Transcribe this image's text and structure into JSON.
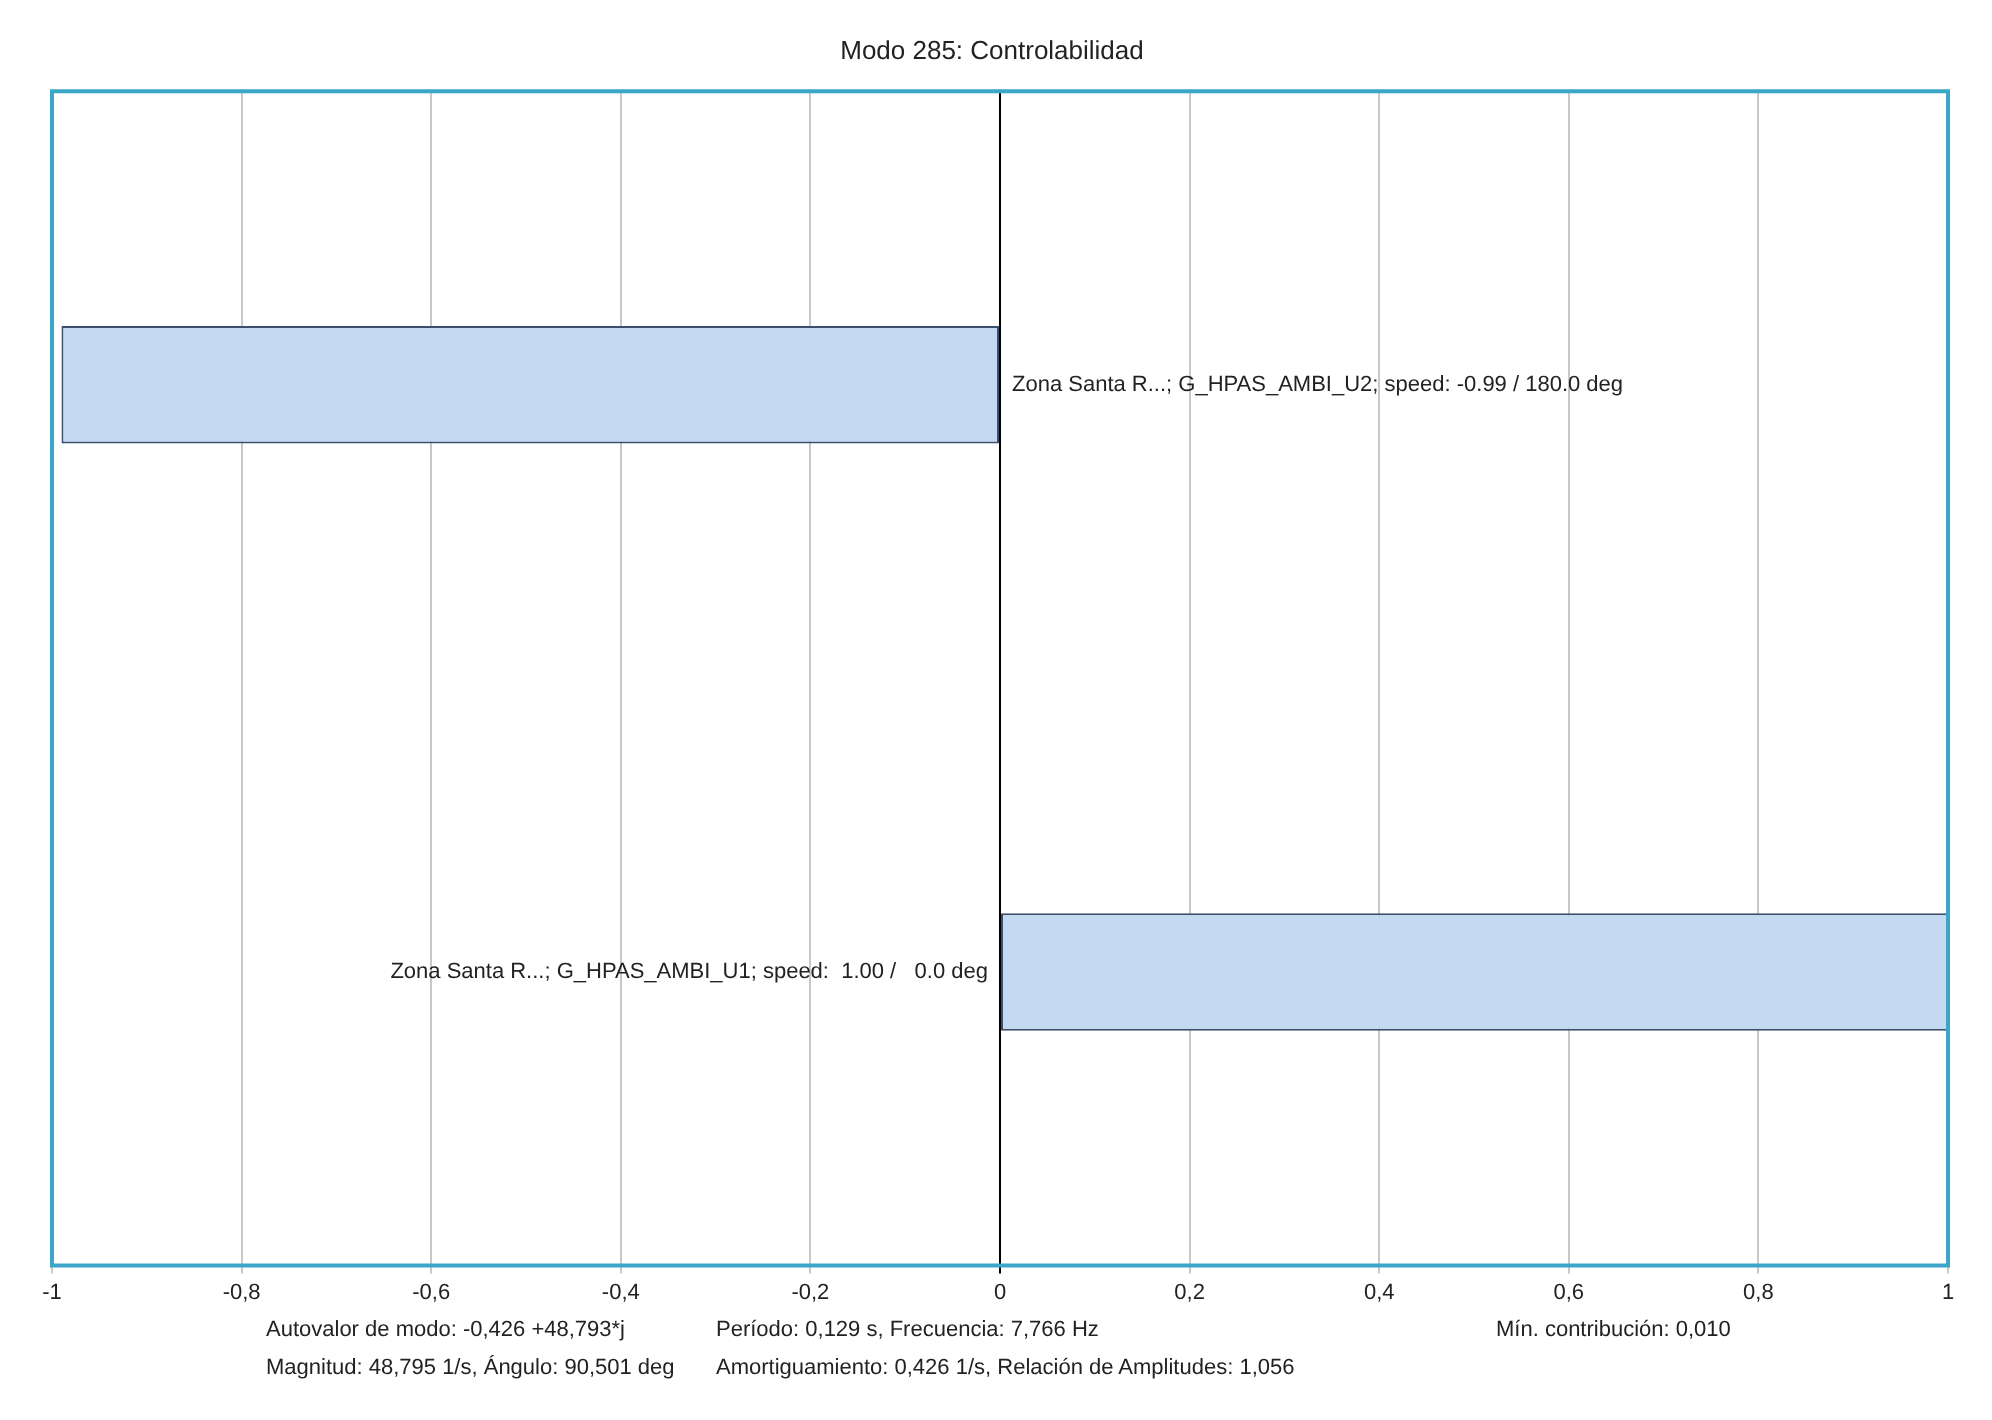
{
  "chart_data": {
    "type": "bar",
    "orientation": "horizontal",
    "title": "Modo 285: Controlabilidad",
    "categories": [
      null,
      null
    ],
    "values": [
      -0.99,
      1.0
    ],
    "value_labels": [
      "Zona Santa R...; G_HPAS_AMBI_U2; speed: -0.99 / 180.0 deg",
      "Zona Santa R...; G_HPAS_AMBI_U1; speed:  1.00 /   0.0 deg"
    ],
    "color": "#c5d9f1",
    "xlim": [
      -1,
      1
    ],
    "xticks": [
      -1,
      {
        "value": -0.8,
        "label": "-0,8"
      },
      {
        "value": -0.6,
        "label": "-0,6"
      },
      {
        "value": -0.4,
        "label": "-0,4"
      },
      {
        "value": -0.2,
        "label": "-0,2"
      },
      0,
      {
        "value": 0.2,
        "label": "0,2"
      },
      {
        "value": 0.4,
        "label": "0,4"
      },
      {
        "value": 0.6,
        "label": "0,6"
      },
      {
        "value": 0.8,
        "label": "0,8"
      },
      1
    ],
    "grid": "x",
    "legend": false,
    "tick_labels": "x",
    "annotations": [
      "Autovalor de modo: -0,426 +48,793*j",
      "Magnitud: 48,795 1/s,  Ángulo: 90,501 deg",
      "Período: 0,129 s,  Frecuencia: 7,766 Hz",
      "Amortiguamiento: 0,426 1/s,  Relación de Amplitudes: 1,056",
      "Mín. contribución: 0,010"
    ]
  }
}
